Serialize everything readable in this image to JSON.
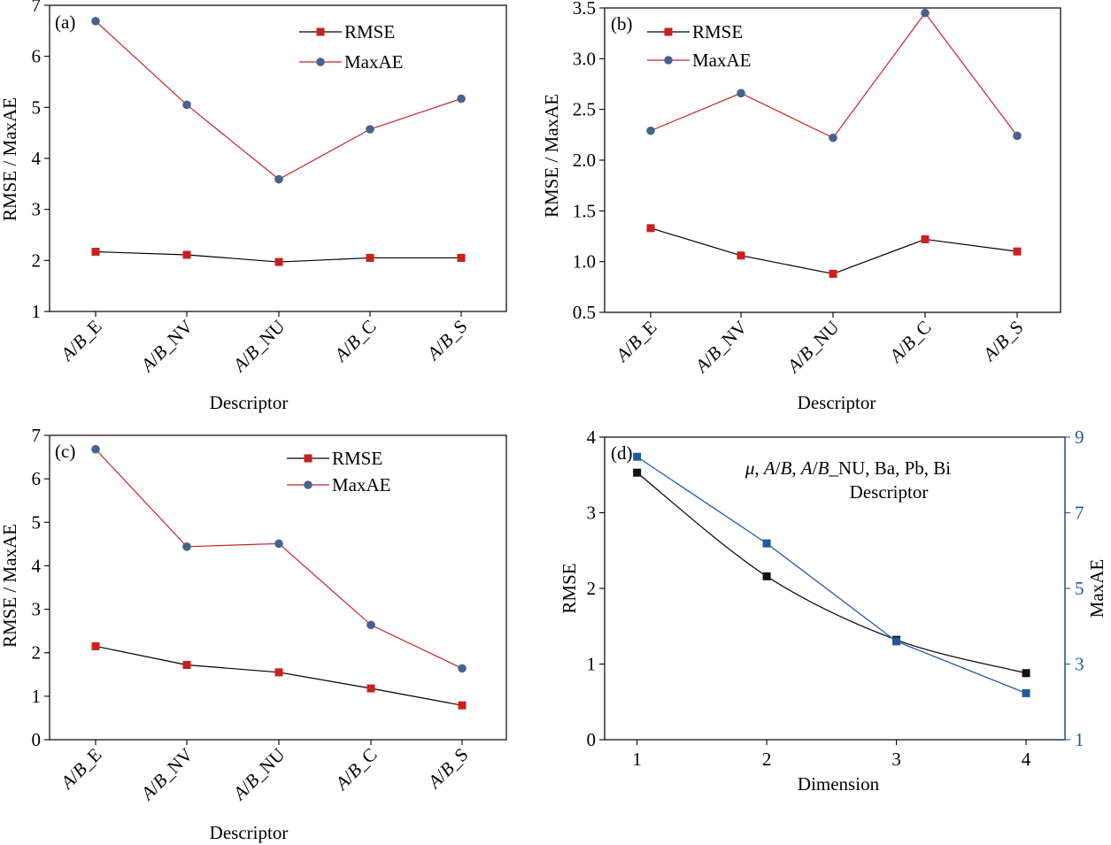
{
  "colors": {
    "rmse_panel_abc": "#cc1f1f",
    "maxae_line": "#c8232a",
    "maxae_marker": "#44638f",
    "rmse_d": "#111111",
    "maxae_d": "#1f5aa0",
    "right_axis_d": "#1f5aa0"
  },
  "chart_data": [
    {
      "panel": "(a)",
      "type": "line",
      "categories": [
        "A/B_E",
        "A/B_NV",
        "A/B_NU",
        "A/B_C",
        "A/B_S"
      ],
      "ylabel": "RMSE / MaxAE",
      "xlabel": "Descriptor",
      "ylim": [
        1,
        7
      ],
      "yticks": [
        "1",
        "2",
        "3",
        "4",
        "5",
        "6",
        "7"
      ],
      "legend": "top-right",
      "series": [
        {
          "name": "RMSE",
          "values": [
            2.17,
            2.11,
            1.97,
            2.05,
            2.05
          ],
          "line": "#000000",
          "marker": "square",
          "marker_color": "#cc1f1f"
        },
        {
          "name": "MaxAE",
          "values": [
            6.69,
            5.05,
            3.59,
            4.57,
            5.17
          ],
          "line": "#c8232a",
          "marker": "circle",
          "marker_color": "#44638f"
        }
      ]
    },
    {
      "panel": "(b)",
      "type": "line",
      "categories": [
        "A/B_E",
        "A/B_NV",
        "A/B_NU",
        "A/B_C",
        "A/B_S"
      ],
      "ylabel": "RMSE / MaxAE",
      "xlabel": "Descriptor",
      "ylim": [
        0.5,
        3.5
      ],
      "yticks": [
        "0.5",
        "1.0",
        "1.5",
        "2.0",
        "2.5",
        "3.0",
        "3.5"
      ],
      "legend": "top-left",
      "series": [
        {
          "name": "RMSE",
          "values": [
            1.33,
            1.06,
            0.88,
            1.22,
            1.1
          ],
          "line": "#000000",
          "marker": "square",
          "marker_color": "#cc1f1f"
        },
        {
          "name": "MaxAE",
          "values": [
            2.29,
            2.66,
            2.22,
            3.45,
            2.24
          ],
          "line": "#c8232a",
          "marker": "circle",
          "marker_color": "#44638f"
        }
      ]
    },
    {
      "panel": "(c)",
      "type": "line",
      "categories": [
        "A/B_E",
        "A/B_NV",
        "A/B_NU",
        "A/B_C",
        "A/B_S"
      ],
      "ylabel": "RMSE / MaxAE",
      "xlabel": "Descriptor",
      "ylim": [
        0,
        7
      ],
      "yticks": [
        "0",
        "1",
        "2",
        "3",
        "4",
        "5",
        "6",
        "7"
      ],
      "legend": "top-right",
      "series": [
        {
          "name": "RMSE",
          "values": [
            2.15,
            1.72,
            1.55,
            1.18,
            0.79
          ],
          "line": "#000000",
          "marker": "square",
          "marker_color": "#cc1f1f"
        },
        {
          "name": "MaxAE",
          "values": [
            6.68,
            4.44,
            4.51,
            2.64,
            1.64
          ],
          "line": "#c8232a",
          "marker": "circle",
          "marker_color": "#44638f"
        }
      ]
    },
    {
      "panel": "(d)",
      "type": "line",
      "x": [
        1,
        2,
        3,
        4
      ],
      "xticks": [
        "1",
        "2",
        "3",
        "4"
      ],
      "xlim": [
        0.75,
        4.3
      ],
      "xlabel": "Dimension",
      "ylabel": "RMSE",
      "ylabel_right": "MaxAE",
      "ylim": [
        0,
        4
      ],
      "yticks": [
        "0",
        "1",
        "2",
        "3",
        "4"
      ],
      "ylim_right": [
        1,
        9
      ],
      "yticks_right": [
        "1",
        "3",
        "5",
        "7",
        "9"
      ],
      "annotation": {
        "line1_parts": [
          "μ",
          ", ",
          "A",
          "/",
          "B",
          ", ",
          "A",
          "/",
          "B",
          "_NU, Ba, Pb, Bi"
        ],
        "line2": "Descriptor"
      },
      "series": [
        {
          "name": "RMSE",
          "axis": "left",
          "values": [
            3.53,
            2.16,
            1.32,
            0.88
          ],
          "color": "#111111"
        },
        {
          "name": "MaxAE",
          "axis": "right",
          "values": [
            8.48,
            6.19,
            3.6,
            2.23
          ],
          "color": "#1f5aa0"
        }
      ]
    }
  ]
}
